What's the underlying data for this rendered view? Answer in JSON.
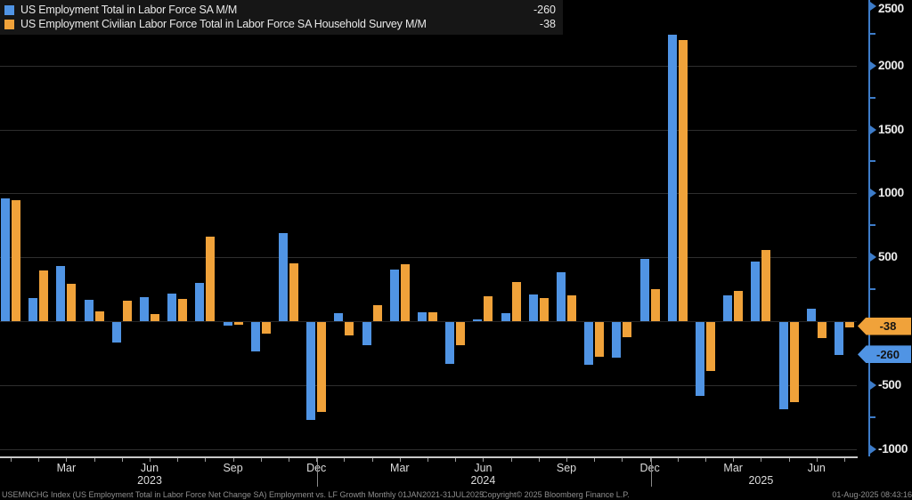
{
  "legend": {
    "series": [
      {
        "label": "US Employment Total in Labor Force SA M/M",
        "value": "-260",
        "color": "#5094e4"
      },
      {
        "label": "US Employment Civilian Labor Force Total in Labor Force SA Household Survey M/M",
        "value": "-38",
        "color": "#f0a23a"
      }
    ]
  },
  "chart_data": {
    "type": "bar",
    "title": "Employment vs. LF Growth",
    "categories": [
      "Jan 2023",
      "Feb 2023",
      "Mar 2023",
      "Apr 2023",
      "May 2023",
      "Jun 2023",
      "Jul 2023",
      "Aug 2023",
      "Sep 2023",
      "Oct 2023",
      "Nov 2023",
      "Dec 2023",
      "Jan 2024",
      "Feb 2024",
      "Mar 2024",
      "Apr 2024",
      "May 2024",
      "Jun 2024",
      "Jul 2024",
      "Aug 2024",
      "Sep 2024",
      "Oct 2024",
      "Nov 2024",
      "Dec 2024",
      "Jan 2025",
      "Feb 2025",
      "Mar 2025",
      "Apr 2025",
      "May 2025",
      "Jun 2025",
      "Jul 2025"
    ],
    "series": [
      {
        "name": "US Employment Total in Labor Force SA M/M",
        "color": "#5094e4",
        "values": [
          960,
          180,
          430,
          165,
          -160,
          190,
          215,
          300,
          -25,
          -230,
          690,
          -765,
          65,
          -180,
          405,
          70,
          -325,
          15,
          65,
          210,
          380,
          -335,
          -280,
          485,
          2240,
          -580,
          200,
          470,
          -685,
          95,
          -260
        ]
      },
      {
        "name": "US Employment Civilian Labor Force Total in Labor Force SA Household Survey M/M",
        "color": "#f0a23a",
        "values": [
          950,
          395,
          295,
          80,
          160,
          55,
          175,
          660,
          -20,
          -90,
          450,
          -700,
          -105,
          125,
          445,
          70,
          -180,
          195,
          305,
          180,
          200,
          -270,
          -120,
          250,
          2200,
          -380,
          240,
          555,
          -625,
          -125,
          -38
        ]
      }
    ],
    "ylim": [
      -1000,
      2500
    ],
    "grid": true,
    "gridline_values": [
      2000,
      1500,
      1000,
      500,
      0,
      -500,
      -1000
    ],
    "y_tick_minor_values": [
      2250,
      1750,
      1250,
      750,
      250,
      -750
    ],
    "y_tick_labels": [
      2500,
      2000,
      1500,
      1000,
      500,
      -500,
      -1000
    ],
    "x_tick_labels": [
      {
        "label": "Mar",
        "month_index": 2
      },
      {
        "label": "Jun",
        "month_index": 5
      },
      {
        "label": "Sep",
        "month_index": 8
      },
      {
        "label": "Dec",
        "month_index": 11
      },
      {
        "label": "Mar",
        "month_index": 14
      },
      {
        "label": "Jun",
        "month_index": 17
      },
      {
        "label": "Sep",
        "month_index": 20
      },
      {
        "label": "Dec",
        "month_index": 23
      },
      {
        "label": "Mar",
        "month_index": 26
      },
      {
        "label": "Jun",
        "month_index": 29
      }
    ],
    "year_labels": [
      {
        "label": "2023",
        "month_index": 5
      },
      {
        "label": "2024",
        "month_index": 17
      },
      {
        "label": "2025",
        "month_index": 27
      }
    ],
    "year_separator_month_indices": [
      11,
      23
    ],
    "legend_position": "top-left",
    "last_value_badges": [
      {
        "value": -38,
        "color": "#f0a23a"
      },
      {
        "value": -260,
        "color": "#5094e4"
      }
    ]
  },
  "footer": {
    "left": "USEMNCHG Index (US Employment Total in Labor Force Net Change SA) Employment vs. LF Growth  Monthly 01JAN2021-31JUL2025",
    "center": "Copyright© 2025 Bloomberg Finance L.P.",
    "right": "01-Aug-2025 08:43:16"
  }
}
